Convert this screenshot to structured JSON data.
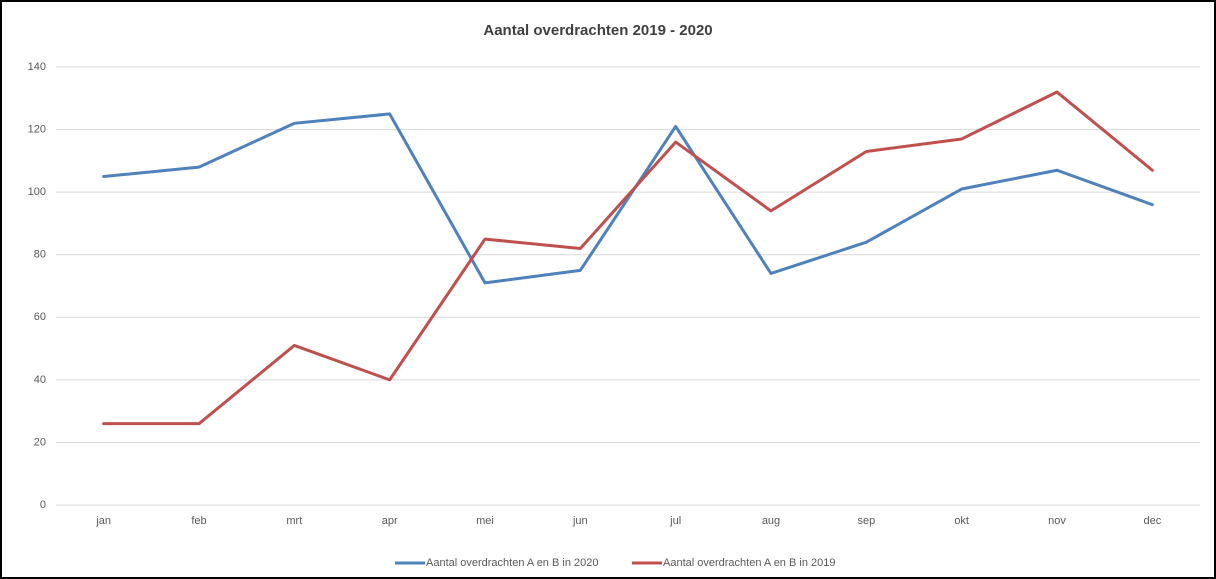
{
  "chart_data": {
    "type": "line",
    "title": "Aantal overdrachten 2019 - 2020",
    "categories": [
      "jan",
      "feb",
      "mrt",
      "apr",
      "mei",
      "jun",
      "jul",
      "aug",
      "sep",
      "okt",
      "nov",
      "dec"
    ],
    "series": [
      {
        "name": "Aantal overdrachten A en B in 2020",
        "color": "#4f81bd",
        "values": [
          105,
          108,
          122,
          125,
          71,
          75,
          121,
          74,
          84,
          101,
          107,
          96
        ]
      },
      {
        "name": "Aantal overdrachten A en B in 2019",
        "color": "#c0504d",
        "values": [
          26,
          26,
          51,
          40,
          85,
          82,
          116,
          94,
          113,
          117,
          132,
          107
        ]
      }
    ],
    "ylim": [
      0,
      140
    ],
    "yticks": [
      0,
      20,
      40,
      60,
      80,
      100,
      120,
      140
    ],
    "grid": true,
    "legend": "bottom"
  }
}
